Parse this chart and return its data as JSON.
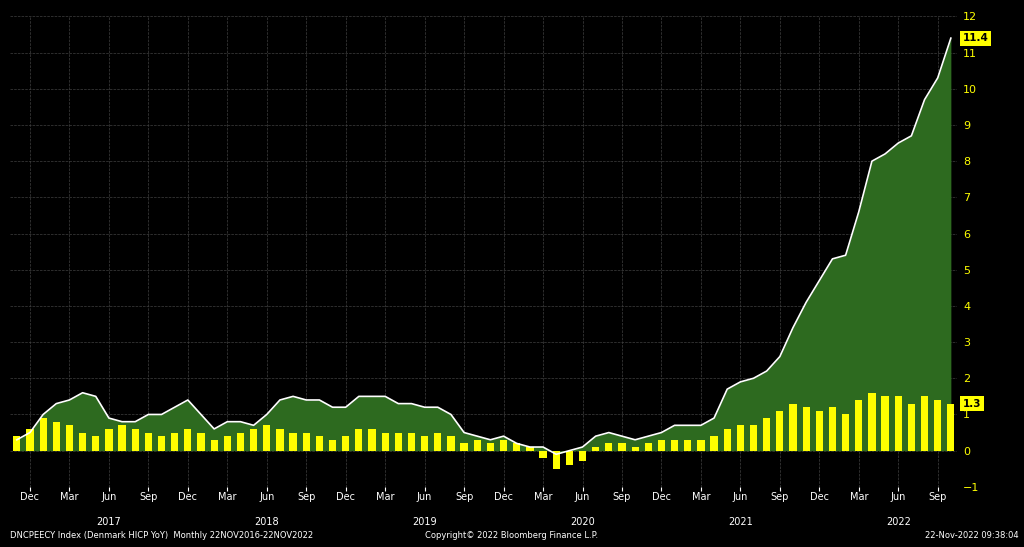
{
  "background_color": "#000000",
  "plot_bg_color": "#000000",
  "grid_color": "#404040",
  "line_color": "#ffffff",
  "fill_color": "#2d6a1f",
  "bar_color": "#ffff00",
  "ylabel_color": "#ffff00",
  "footnote_left": "DNCPEECY Index (Denmark HICP YoY)  Monthly 22NOV2016-22NOV2022",
  "footnote_center": "Copyright© 2022 Bloomberg Finance L.P.",
  "footnote_right": "22-Nov-2022 09:38:04",
  "ylim": [
    -1.0,
    12.0
  ],
  "yticks": [
    -1.0,
    0.0,
    1.0,
    2.0,
    3.0,
    4.0,
    5.0,
    6.0,
    7.0,
    8.0,
    9.0,
    10.0,
    11.0,
    12.0
  ],
  "last_value": 11.4,
  "last_bar_value": 1.3,
  "hicp_values": [
    0.3,
    0.5,
    1.0,
    1.3,
    1.4,
    1.6,
    1.5,
    0.9,
    0.8,
    0.8,
    1.0,
    1.0,
    1.2,
    1.4,
    1.0,
    0.6,
    0.8,
    0.8,
    0.7,
    1.0,
    1.4,
    1.5,
    1.4,
    1.4,
    1.2,
    1.2,
    1.5,
    1.5,
    1.5,
    1.3,
    1.3,
    1.2,
    1.2,
    1.0,
    0.5,
    0.4,
    0.3,
    0.4,
    0.2,
    0.1,
    0.1,
    -0.1,
    0.0,
    0.1,
    0.4,
    0.5,
    0.4,
    0.3,
    0.4,
    0.5,
    0.7,
    0.7,
    0.7,
    0.9,
    1.7,
    1.9,
    2.0,
    2.2,
    2.6,
    3.4,
    4.1,
    4.7,
    5.3,
    5.4,
    6.6,
    8.0,
    8.2,
    8.5,
    8.7,
    9.7,
    10.3,
    11.4
  ],
  "bar_values": [
    0.4,
    0.6,
    0.9,
    0.8,
    0.7,
    0.5,
    0.4,
    0.6,
    0.7,
    0.6,
    0.5,
    0.4,
    0.5,
    0.6,
    0.5,
    0.3,
    0.4,
    0.5,
    0.6,
    0.7,
    0.6,
    0.5,
    0.5,
    0.4,
    0.3,
    0.4,
    0.6,
    0.6,
    0.5,
    0.5,
    0.5,
    0.4,
    0.5,
    0.4,
    0.2,
    0.3,
    0.2,
    0.3,
    0.2,
    0.1,
    -0.2,
    -0.5,
    -0.4,
    -0.3,
    0.1,
    0.2,
    0.2,
    0.1,
    0.2,
    0.3,
    0.3,
    0.3,
    0.3,
    0.4,
    0.6,
    0.7,
    0.7,
    0.9,
    1.1,
    1.3,
    1.2,
    1.1,
    1.2,
    1.0,
    1.4,
    1.6,
    1.5,
    1.5,
    1.3,
    1.5,
    1.4,
    1.3
  ]
}
